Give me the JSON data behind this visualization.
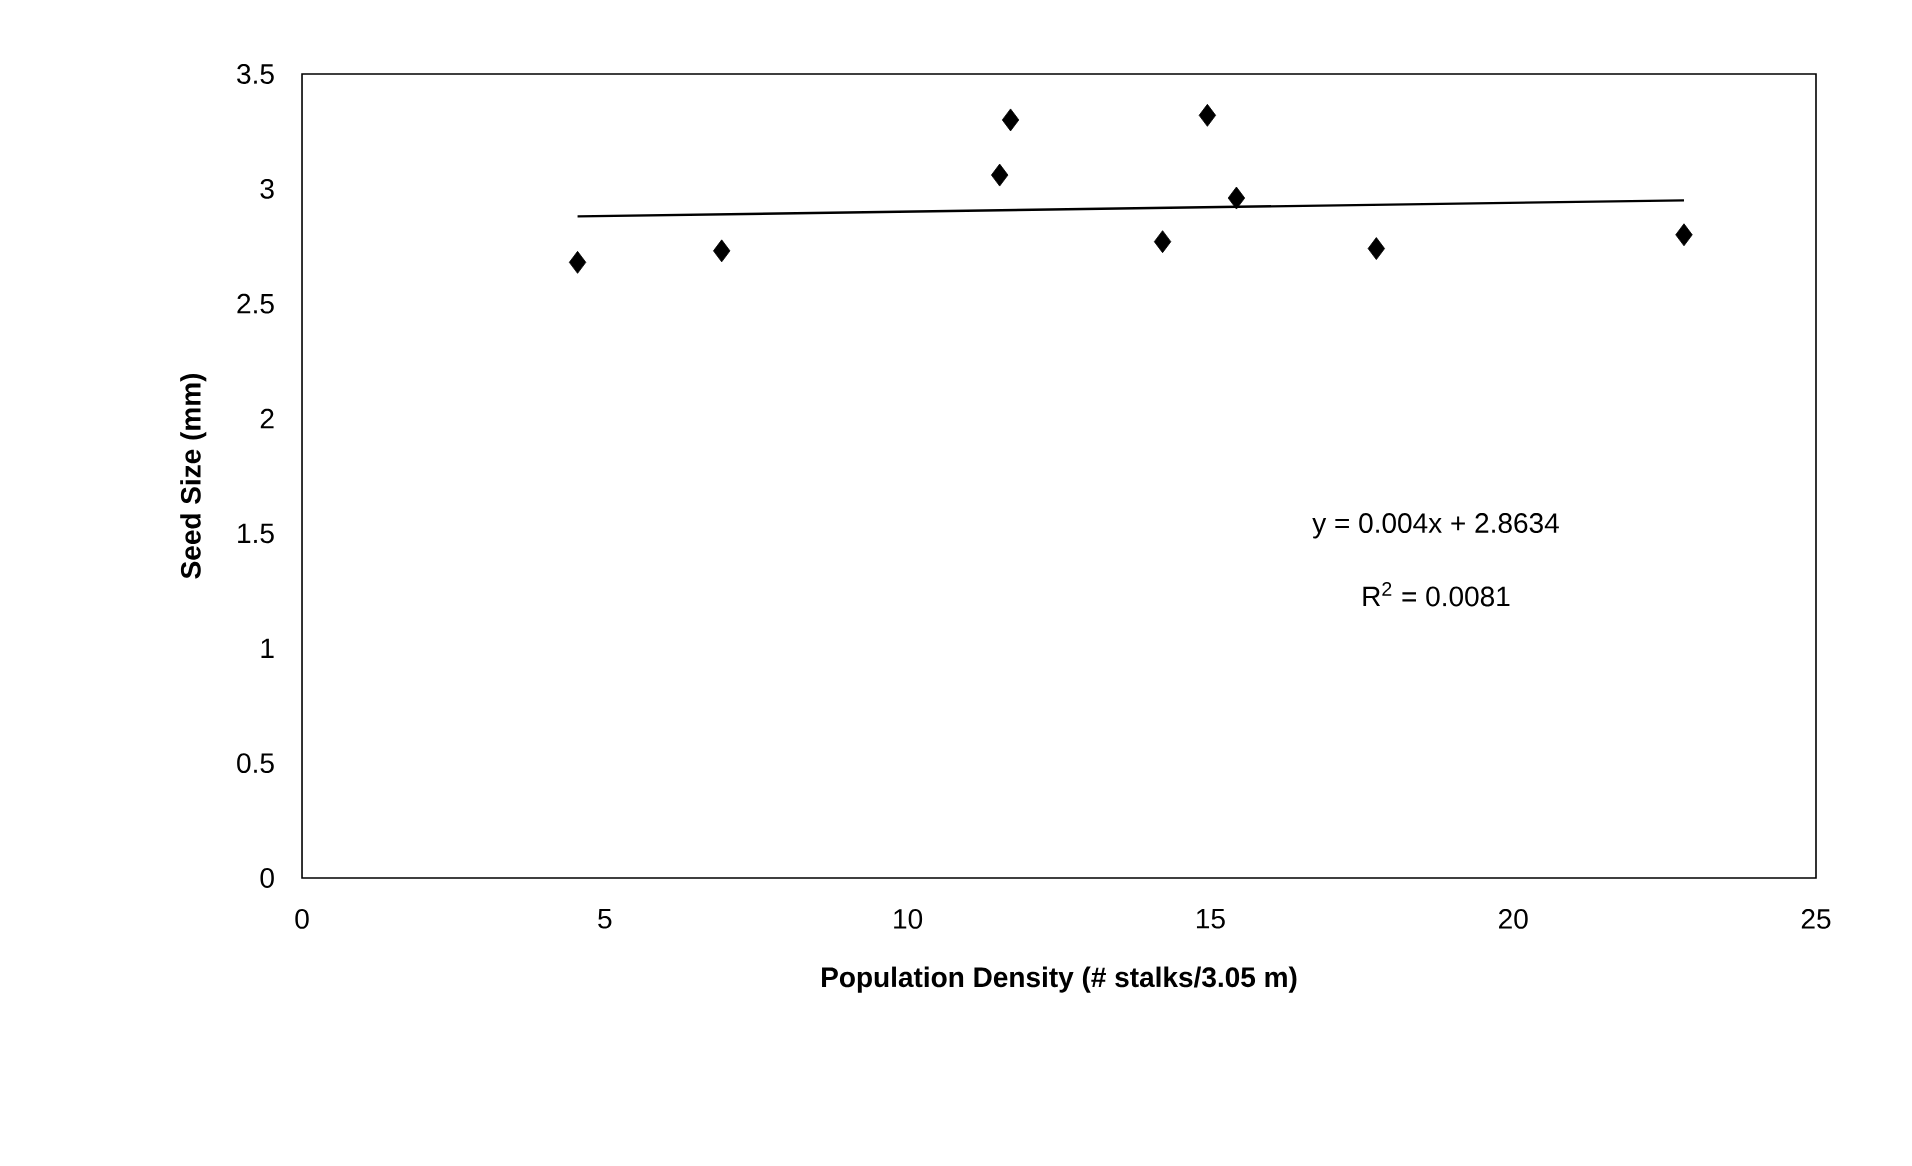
{
  "chart_data": {
    "type": "scatter",
    "xlabel": "Population Density (# stalks/3.05 m)",
    "ylabel": "Seed Size (mm)",
    "xlim": [
      0,
      25
    ],
    "ylim": [
      0,
      3.5
    ],
    "xticks": [
      0,
      5,
      10,
      15,
      20,
      25
    ],
    "yticks": [
      0,
      0.5,
      1,
      1.5,
      2,
      2.5,
      3,
      3.5
    ],
    "grid": false,
    "series": [
      {
        "color": "#000000",
        "marker": "diamond",
        "x": [
          4.55,
          6.93,
          11.52,
          11.7,
          14.21,
          14.95,
          15.43,
          17.74,
          22.82
        ],
        "values": [
          2.68,
          2.73,
          3.06,
          3.3,
          2.77,
          3.32,
          2.96,
          2.74,
          2.8
        ]
      },
      {
        "type": "line",
        "color": "#000000",
        "marker": "none",
        "line_style": "solid",
        "x": [
          4.55,
          22.82
        ],
        "values": [
          2.88,
          2.95
        ]
      }
    ],
    "annotations": [
      "y = 0.004x + 2.8634",
      "R$^{2}$ = 0.0081"
    ]
  }
}
